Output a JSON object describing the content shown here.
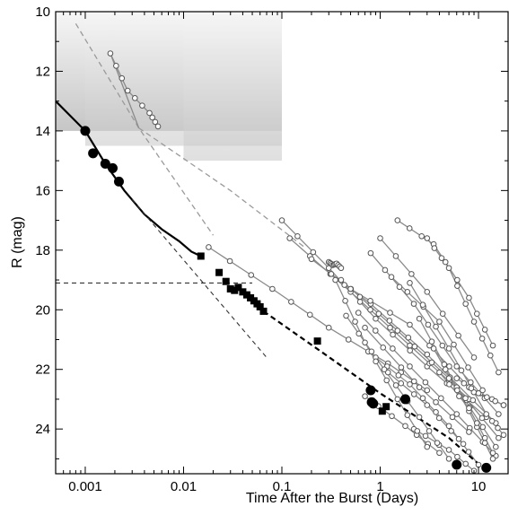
{
  "chart_data": {
    "type": "scatter",
    "title": "",
    "xlabel": "Time After the Burst  (Days)",
    "ylabel": "R  (mag)",
    "x_scale": "log",
    "xlim": [
      0.0005,
      20
    ],
    "ylim": [
      25.5,
      10
    ],
    "y_inverted": true,
    "grid": false,
    "legend": "none",
    "x_ticks": [
      {
        "value": 0.001,
        "label": "0.001"
      },
      {
        "value": 0.01,
        "label": "0.01"
      },
      {
        "value": 0.1,
        "label": "0.1"
      },
      {
        "value": 1,
        "label": "1"
      },
      {
        "value": 10,
        "label": "10"
      }
    ],
    "y_ticks": [
      {
        "value": 10,
        "label": "10"
      },
      {
        "value": 12,
        "label": "12"
      },
      {
        "value": 14,
        "label": "14"
      },
      {
        "value": 16,
        "label": "16"
      },
      {
        "value": 18,
        "label": "18"
      },
      {
        "value": 20,
        "label": "20"
      },
      {
        "value": 22,
        "label": "22"
      },
      {
        "value": 24,
        "label": "24"
      }
    ],
    "shaded_regions": [
      {
        "x": [
          0.0005,
          0.1
        ],
        "y_top": 10,
        "y_bottom": 14.0
      },
      {
        "x": [
          0.001,
          0.1
        ],
        "y_top": 10,
        "y_bottom": 14.5
      },
      {
        "x": [
          0.01,
          0.1
        ],
        "y_top": 10,
        "y_bottom": 15.0
      }
    ],
    "colors": {
      "filled_marker": "#000000",
      "open_marker": "#555555",
      "gray_track": "#8a8a8a",
      "shade_dark": "#c6c6c6",
      "shade_light": "#f6f6f6"
    },
    "curves": {
      "solid_black": [
        [
          0.0005,
          13.0
        ],
        [
          0.001,
          14.0
        ],
        [
          0.0016,
          15.1
        ],
        [
          0.0025,
          16.0
        ],
        [
          0.004,
          16.8
        ],
        [
          0.006,
          17.3
        ],
        [
          0.009,
          17.7
        ],
        [
          0.012,
          18.05
        ],
        [
          0.015,
          18.2
        ]
      ],
      "dashed_black_thick": [
        [
          0.065,
          20.05
        ],
        [
          0.25,
          21.4
        ],
        [
          1,
          22.8
        ],
        [
          5,
          24.3
        ],
        [
          12,
          25.4
        ]
      ],
      "dashed_black_horizontal": [
        [
          0.0005,
          19.1
        ],
        [
          0.05,
          19.1
        ]
      ],
      "dashed_black_steep": [
        [
          0.003,
          16.3
        ],
        [
          0.07,
          21.6
        ]
      ],
      "dashed_gray_steep": [
        [
          0.0008,
          10.4
        ],
        [
          0.0035,
          13.9
        ],
        [
          0.02,
          17.5
        ]
      ],
      "dashed_gray_shallow": [
        [
          0.0035,
          13.9
        ],
        [
          0.03,
          16.0
        ],
        [
          0.17,
          17.9
        ]
      ],
      "solid_gray_early": [
        [
          0.0018,
          11.4
        ],
        [
          0.0035,
          13.9
        ]
      ]
    },
    "filled_circles": [
      [
        0.001,
        14.0
      ],
      [
        0.0012,
        14.75
      ],
      [
        0.0016,
        15.1
      ],
      [
        0.0019,
        15.25
      ],
      [
        0.0022,
        15.7
      ],
      [
        0.8,
        22.7
      ],
      [
        0.82,
        23.1
      ],
      [
        0.85,
        23.15
      ],
      [
        1.8,
        23.0
      ],
      [
        6,
        25.2
      ],
      [
        12,
        25.3
      ]
    ],
    "filled_squares": [
      [
        0.015,
        18.2
      ],
      [
        0.023,
        18.75
      ],
      [
        0.027,
        19.05
      ],
      [
        0.03,
        19.3
      ],
      [
        0.033,
        19.35
      ],
      [
        0.036,
        19.25
      ],
      [
        0.04,
        19.4
      ],
      [
        0.044,
        19.5
      ],
      [
        0.048,
        19.6
      ],
      [
        0.052,
        19.7
      ],
      [
        0.056,
        19.8
      ],
      [
        0.06,
        19.9
      ],
      [
        0.065,
        20.05
      ],
      [
        0.23,
        21.05
      ],
      [
        1.05,
        23.4
      ],
      [
        1.15,
        23.25
      ]
    ],
    "tracks": [
      [
        [
          0.0018,
          11.4
        ],
        [
          0.0027,
          12.65
        ],
        [
          0.0045,
          13.4
        ],
        [
          0.0055,
          13.85
        ]
      ],
      [
        [
          0.018,
          17.9
        ],
        [
          0.08,
          19.3
        ],
        [
          0.3,
          20.6
        ],
        [
          1.2,
          21.8
        ],
        [
          3,
          22.7
        ]
      ],
      [
        [
          0.1,
          17.0
        ],
        [
          0.3,
          18.6
        ],
        [
          0.9,
          20.3
        ],
        [
          3,
          21.9
        ],
        [
          12,
          23.6
        ]
      ],
      [
        [
          0.12,
          17.6
        ],
        [
          0.5,
          19.4
        ],
        [
          2,
          21.2
        ],
        [
          8,
          23.0
        ]
      ],
      [
        [
          0.2,
          18.3
        ],
        [
          0.8,
          19.8
        ],
        [
          3,
          21.5
        ],
        [
          15,
          23.8
        ]
      ],
      [
        [
          0.3,
          18.4
        ],
        [
          0.33,
          18.5
        ],
        [
          0.36,
          18.45
        ],
        [
          0.4,
          18.6
        ]
      ],
      [
        [
          0.4,
          19.0
        ],
        [
          1.5,
          20.7
        ],
        [
          5,
          22.3
        ],
        [
          16,
          24.3
        ]
      ],
      [
        [
          0.5,
          19.3
        ],
        [
          2,
          20.5
        ],
        [
          8,
          22.6
        ],
        [
          18,
          23.2
        ]
      ],
      [
        [
          0.6,
          20.1
        ],
        [
          2,
          21.9
        ],
        [
          6,
          23.5
        ],
        [
          15,
          24.9
        ]
      ],
      [
        [
          0.7,
          20.6
        ],
        [
          2.5,
          22.6
        ],
        [
          8,
          24.1
        ]
      ],
      [
        [
          0.8,
          18.1
        ],
        [
          2.2,
          19.8
        ],
        [
          6,
          21.9
        ],
        [
          16,
          23.5
        ]
      ],
      [
        [
          1,
          17.6
        ],
        [
          3,
          19.4
        ],
        [
          9,
          21.6
        ]
      ],
      [
        [
          1.3,
          18.9
        ],
        [
          4,
          20.4
        ],
        [
          11,
          22.7
        ]
      ],
      [
        [
          1.5,
          17.0
        ],
        [
          3.5,
          17.8
        ],
        [
          8,
          19.6
        ],
        [
          14,
          21.2
        ]
      ],
      [
        [
          2,
          19.1
        ],
        [
          5,
          21.3
        ],
        [
          12,
          23.5
        ],
        [
          18,
          24.2
        ]
      ],
      [
        [
          2.5,
          20.3
        ],
        [
          6,
          22.6
        ],
        [
          15,
          24.6
        ]
      ],
      [
        [
          3,
          17.6
        ],
        [
          5,
          18.6
        ],
        [
          9,
          20.4
        ],
        [
          16,
          22.1
        ]
      ],
      [
        [
          3.5,
          21.3
        ],
        [
          8,
          23.4
        ],
        [
          14,
          25.0
        ]
      ],
      [
        [
          0.9,
          21.6
        ],
        [
          2,
          22.5
        ],
        [
          5,
          23.9
        ],
        [
          10,
          25.2
        ]
      ],
      [
        [
          1.2,
          22.1
        ],
        [
          3,
          23.2
        ],
        [
          7,
          24.5
        ]
      ],
      [
        [
          0.45,
          20.2
        ],
        [
          1.1,
          22.0
        ],
        [
          2.5,
          23.6
        ],
        [
          5,
          25.0
        ]
      ],
      [
        [
          4,
          22.1
        ],
        [
          8,
          23.3
        ],
        [
          14,
          24.8
        ]
      ],
      [
        [
          6,
          22.3
        ],
        [
          10,
          22.8
        ],
        [
          18,
          23.2
        ]
      ],
      [
        [
          0.7,
          22.9
        ],
        [
          1.8,
          23.9
        ],
        [
          4,
          24.8
        ]
      ],
      [
        [
          2.2,
          24.0
        ],
        [
          5,
          24.7
        ],
        [
          9,
          25.4
        ]
      ],
      [
        [
          0.35,
          19.0
        ],
        [
          0.7,
          21.1
        ],
        [
          1.5,
          23.0
        ],
        [
          3,
          24.6
        ]
      ]
    ]
  }
}
